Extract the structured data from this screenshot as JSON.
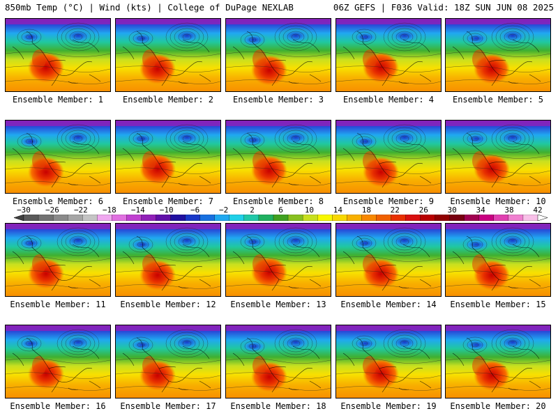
{
  "header": {
    "left": "850mb Temp (°C) | Wind (kts) | College of DuPage NEXLAB",
    "right": "06Z GEFS | F036 Valid: 18Z SUN JUN 08 2025"
  },
  "colorbar": {
    "tick_labels": [
      "-30",
      "-26",
      "-22",
      "-18",
      "-14",
      "-10",
      "-6",
      "-2",
      "2",
      "6",
      "10",
      "14",
      "18",
      "22",
      "26",
      "30",
      "34",
      "38",
      "42"
    ],
    "colors": [
      "#404040",
      "#5a5a5a",
      "#727272",
      "#8a8a8a",
      "#a6a6a6",
      "#c4c4c4",
      "#f0a8f0",
      "#e070e0",
      "#c040d0",
      "#9020b8",
      "#6010a8",
      "#2010a0",
      "#1838c8",
      "#1870e0",
      "#20a8f0",
      "#20d0e8",
      "#20c8a8",
      "#20b060",
      "#40a020",
      "#88c020",
      "#c8e020",
      "#f8f800",
      "#f8d800",
      "#f8b000",
      "#f88800",
      "#f06000",
      "#e83000",
      "#d81010",
      "#b80000",
      "#900000",
      "#780010",
      "#a00050",
      "#c80080",
      "#e040b0",
      "#f080d0",
      "#f8c0e8",
      "#ffffff"
    ],
    "value_range": [
      -30,
      42
    ]
  },
  "panels": [
    {
      "label": "Ensemble Member: 1"
    },
    {
      "label": "Ensemble Member: 2"
    },
    {
      "label": "Ensemble Member: 3"
    },
    {
      "label": "Ensemble Member: 4"
    },
    {
      "label": "Ensemble Member: 5"
    },
    {
      "label": "Ensemble Member: 6"
    },
    {
      "label": "Ensemble Member: 7"
    },
    {
      "label": "Ensemble Member: 8"
    },
    {
      "label": "Ensemble Member: 9"
    },
    {
      "label": "Ensemble Member: 10"
    },
    {
      "label": "Ensemble Member: 11"
    },
    {
      "label": "Ensemble Member: 12"
    },
    {
      "label": "Ensemble Member: 13"
    },
    {
      "label": "Ensemble Member: 14"
    },
    {
      "label": "Ensemble Member: 15"
    },
    {
      "label": "Ensemble Member: 16"
    },
    {
      "label": "Ensemble Member: 17"
    },
    {
      "label": "Ensemble Member: 18"
    },
    {
      "label": "Ensemble Member: 19"
    },
    {
      "label": "Ensemble Member: 20"
    }
  ]
}
